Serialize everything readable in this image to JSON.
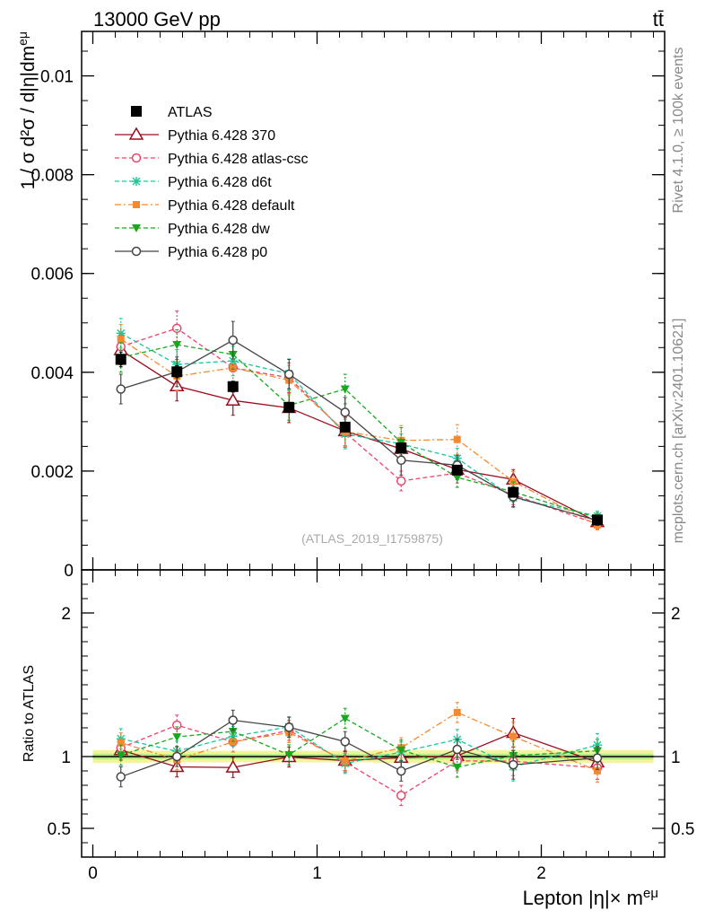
{
  "header": {
    "energy_label": "13000 GeV pp",
    "process_label": "tt̄"
  },
  "side_labels": {
    "rivet": "Rivet 4.1.0, ≥ 100k events",
    "source": "mcplots.cern.ch [arXiv:2401.10621]"
  },
  "analysis_id": "(ATLAS_2019_I1759875)",
  "colors": {
    "ATLAS": "#000000",
    "Pythia 6.428 370": "#9b0d1e",
    "Pythia 6.428 atlas-csc": "#f0436a",
    "Pythia 6.428 d6t": "#1bc79a",
    "Pythia 6.428 default": "#f5892f",
    "Pythia 6.428 dw": "#18a820",
    "Pythia 6.428 p0": "#444444",
    "band_yellow": "#f4f49a",
    "band_green": "#b6ea86"
  },
  "chart_data": [
    {
      "type": "scatter",
      "panel": "main",
      "title": "13000 GeV pp",
      "xlabel": "Lepton |η|× m^eμ",
      "ylabel": "1 / σ d²σ / d|η|dm^eμ",
      "xlim": [
        -0.05,
        2.55
      ],
      "ylim": [
        0,
        0.0109
      ],
      "x": [
        0.125,
        0.375,
        0.625,
        0.875,
        1.125,
        1.375,
        1.625,
        1.875,
        2.25
      ],
      "x_bin_edges": [
        0,
        0.25,
        0.5,
        0.75,
        1.0,
        1.25,
        1.5,
        1.75,
        2.0,
        2.5
      ],
      "y_ticks": [
        "0",
        "0.002",
        "0.004",
        "0.006",
        "0.008",
        "0.01"
      ],
      "y_tick_values": [
        0,
        0.002,
        0.004,
        0.006,
        0.008,
        0.01
      ],
      "x_ticks": [
        "0",
        "1",
        "2"
      ],
      "x_tick_values": [
        0,
        1,
        2
      ],
      "legend_position": "top-left",
      "series": [
        {
          "name": "ATLAS",
          "marker": "square-filled",
          "line": "none",
          "values": [
            0.00426,
            0.00401,
            0.00371,
            0.00329,
            0.00289,
            0.00247,
            0.00202,
            0.00157,
            0.00101
          ],
          "errors": [
            0.00015,
            0.00012,
            0.00011,
            0.0001,
            0.0001,
            0.0001,
            8e-05,
            6e-05,
            4e-05
          ]
        },
        {
          "name": "Pythia 6.428 370",
          "marker": "triangle-open",
          "line": "solid",
          "values": [
            0.00445,
            0.00372,
            0.00343,
            0.00328,
            0.00281,
            0.00245,
            0.00203,
            0.00183,
            0.00097
          ],
          "errors": [
            0.0003,
            0.0003,
            0.0003,
            0.0003,
            0.0003,
            0.0002,
            0.0002,
            0.0002,
            0.0001
          ]
        },
        {
          "name": "Pythia 6.428 atlas-csc",
          "marker": "circle-open",
          "line": "dashed",
          "values": [
            0.00452,
            0.00489,
            0.00409,
            0.00389,
            0.00278,
            0.0018,
            0.00196,
            0.00152,
            0.00093
          ],
          "errors": [
            0.0003,
            0.00035,
            0.0003,
            0.0003,
            0.0003,
            0.0002,
            0.0002,
            0.0002,
            0.0001
          ]
        },
        {
          "name": "Pythia 6.428 d6t",
          "marker": "asterisk",
          "line": "dashed",
          "values": [
            0.00479,
            0.00416,
            0.00423,
            0.00397,
            0.00275,
            0.00255,
            0.00226,
            0.00146,
            0.00109
          ],
          "errors": [
            0.0003,
            0.0003,
            0.0003,
            0.0003,
            0.0003,
            0.0002,
            0.0002,
            0.0002,
            0.0001
          ]
        },
        {
          "name": "Pythia 6.428 default",
          "marker": "square-filled-small",
          "line": "dashdot",
          "values": [
            0.00467,
            0.00392,
            0.00409,
            0.00384,
            0.0028,
            0.00262,
            0.00264,
            0.00179,
            0.00091
          ],
          "errors": [
            0.0003,
            0.0003,
            0.0003,
            0.0003,
            0.0003,
            0.0003,
            0.0003,
            0.0002,
            0.0001
          ]
        },
        {
          "name": "Pythia 6.428 dw",
          "marker": "triangle-down-filled",
          "line": "dashed",
          "values": [
            0.0043,
            0.00456,
            0.00436,
            0.00333,
            0.00366,
            0.00258,
            0.00187,
            0.00158,
            0.00105
          ],
          "errors": [
            0.0003,
            0.0003,
            0.0003,
            0.0003,
            0.0003,
            0.0003,
            0.0002,
            0.0002,
            0.0001
          ]
        },
        {
          "name": "Pythia 6.428 p0",
          "marker": "circle-open",
          "line": "solid",
          "values": [
            0.00366,
            0.00401,
            0.00465,
            0.00396,
            0.00319,
            0.00222,
            0.00212,
            0.00148,
            0.001
          ],
          "errors": [
            0.0003,
            0.0003,
            0.00038,
            0.0003,
            0.0003,
            0.0003,
            0.0002,
            0.0002,
            0.0001
          ]
        }
      ]
    },
    {
      "type": "scatter",
      "panel": "ratio",
      "ylabel": "Ratio to ATLAS",
      "ylim": [
        0.3,
        2.3
      ],
      "y_ticks": [
        "0.5",
        "1",
        "2"
      ],
      "y_tick_values": [
        0.5,
        1,
        2
      ],
      "reference_line": 1,
      "band_yellow_halfwidth": [
        0.045,
        0.04,
        0.04,
        0.04,
        0.04,
        0.045,
        0.045,
        0.045,
        0.045
      ],
      "band_green_halfwidth": [
        0.02,
        0.018,
        0.018,
        0.018,
        0.018,
        0.02,
        0.02,
        0.02,
        0.02
      ],
      "series": [
        {
          "name": "Pythia 6.428 370",
          "values": [
            1.045,
            0.928,
            0.924,
            0.997,
            0.972,
            0.992,
            1.005,
            1.166,
            0.96
          ],
          "errors": [
            0.07,
            0.07,
            0.07,
            0.07,
            0.07,
            0.07,
            0.07,
            0.1,
            0.08
          ]
        },
        {
          "name": "Pythia 6.428 atlas-csc",
          "values": [
            1.061,
            1.219,
            1.102,
            1.182,
            0.962,
            0.729,
            0.97,
            0.968,
            0.921
          ],
          "errors": [
            0.07,
            0.07,
            0.07,
            0.07,
            0.07,
            0.07,
            0.07,
            0.1,
            0.08
          ]
        },
        {
          "name": "Pythia 6.428 d6t",
          "values": [
            1.124,
            1.037,
            1.14,
            1.207,
            0.952,
            1.032,
            1.119,
            0.93,
            1.08
          ],
          "errors": [
            0.07,
            0.07,
            0.07,
            0.07,
            0.07,
            0.07,
            0.07,
            0.1,
            0.08
          ]
        },
        {
          "name": "Pythia 6.428 default",
          "values": [
            1.096,
            0.978,
            1.102,
            1.167,
            0.969,
            1.061,
            1.307,
            1.14,
            0.901
          ],
          "errors": [
            0.07,
            0.07,
            0.07,
            0.07,
            0.07,
            0.07,
            0.07,
            0.1,
            0.08
          ]
        },
        {
          "name": "Pythia 6.428 dw",
          "values": [
            1.009,
            1.137,
            1.175,
            1.012,
            1.266,
            1.045,
            0.926,
            1.006,
            1.04
          ],
          "errors": [
            0.07,
            0.07,
            0.07,
            0.07,
            0.07,
            0.07,
            0.07,
            0.1,
            0.08
          ]
        },
        {
          "name": "Pythia 6.428 p0",
          "values": [
            0.859,
            1.0,
            1.253,
            1.204,
            1.104,
            0.899,
            1.05,
            0.943,
            0.99
          ],
          "errors": [
            0.07,
            0.07,
            0.07,
            0.07,
            0.07,
            0.07,
            0.07,
            0.1,
            0.08
          ]
        }
      ]
    }
  ]
}
